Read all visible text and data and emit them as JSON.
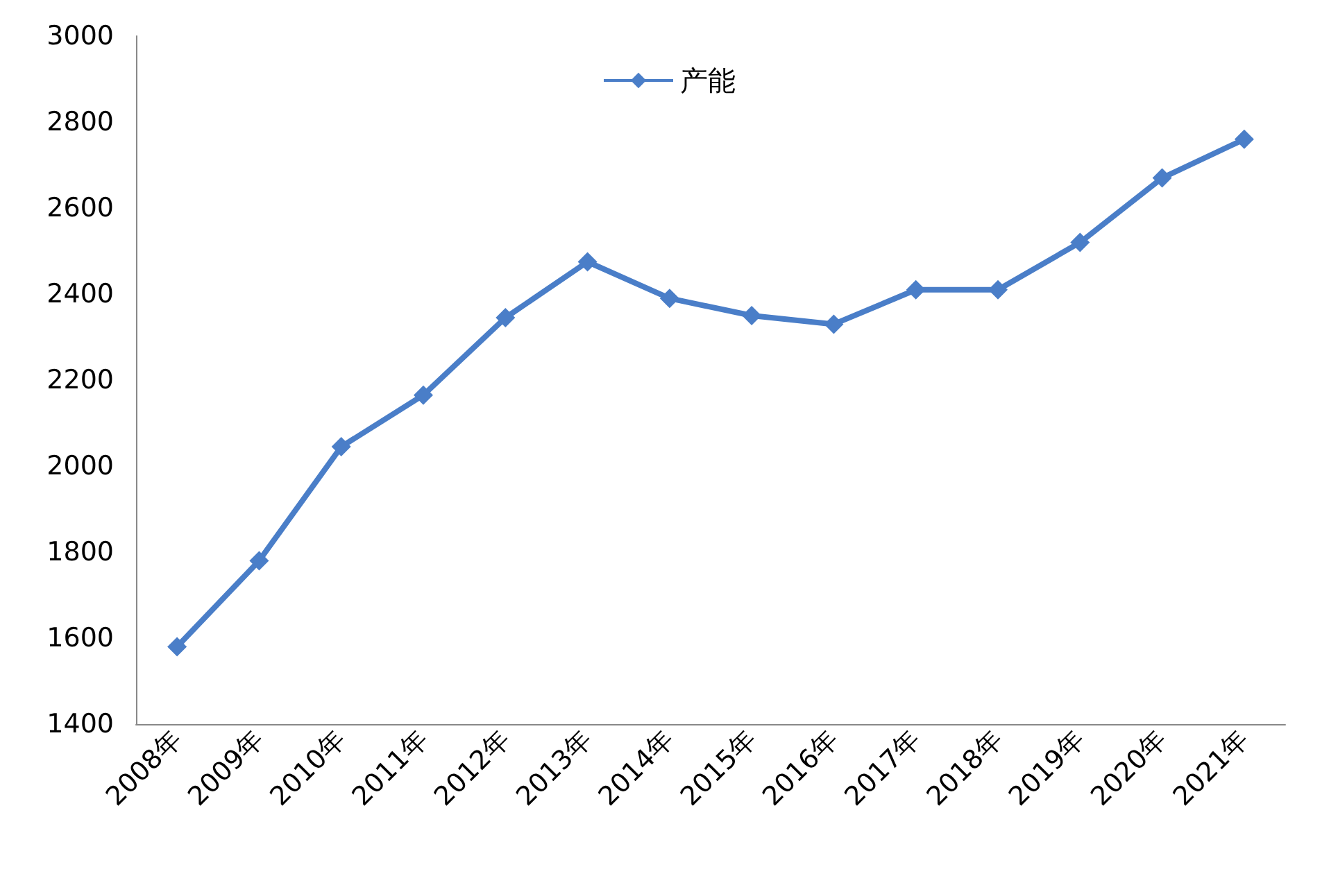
{
  "chart_data": {
    "type": "line",
    "categories": [
      "2008年",
      "2009年",
      "2010年",
      "2011年",
      "2012年",
      "2013年",
      "2014年",
      "2015年",
      "2016年",
      "2017年",
      "2018年",
      "2019年",
      "2020年",
      "2021年"
    ],
    "series": [
      {
        "name": "产能",
        "color": "#4a7ec8",
        "values": [
          1580,
          1780,
          2045,
          2165,
          2345,
          2475,
          2390,
          2350,
          2330,
          2410,
          2410,
          2520,
          2670,
          2760
        ]
      }
    ],
    "ylim": [
      1400,
      3000
    ],
    "yticks": [
      1400,
      1600,
      1800,
      2000,
      2200,
      2400,
      2600,
      2800,
      3000
    ],
    "grid": false,
    "legend": "top",
    "marker": "diamond",
    "line_style": "solid"
  }
}
